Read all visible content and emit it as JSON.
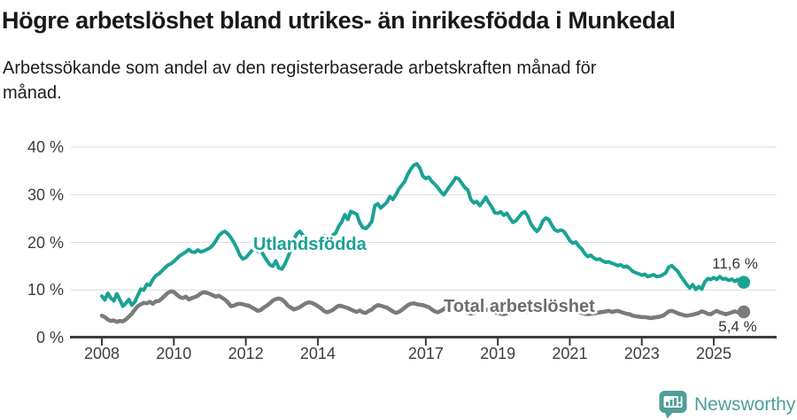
{
  "header": {
    "title": "Högre arbetslöshet bland utrikes- än inrikesfödda i Munkedal",
    "subtitle": "Arbetssökande som andel av den registerbaserade arbetskraften månad för\nmånad."
  },
  "chart_data": {
    "type": "line",
    "unit": "%",
    "frequency": "monthly",
    "start": {
      "year": 2008,
      "month": 1
    },
    "end": {
      "year": 2025,
      "month": 11
    },
    "grid": true,
    "ylim": [
      0,
      40
    ],
    "y_axis": {
      "ticks": [
        {
          "value": 0,
          "label": "0 %"
        },
        {
          "value": 10,
          "label": "10 %"
        },
        {
          "value": 20,
          "label": "20 %"
        },
        {
          "value": 30,
          "label": "30 %"
        },
        {
          "value": 40,
          "label": "40 %"
        }
      ]
    },
    "x_axis": {
      "ticks": [
        {
          "year": 2008,
          "label": "2008"
        },
        {
          "year": 2010,
          "label": "2010"
        },
        {
          "year": 2012,
          "label": "2012"
        },
        {
          "year": 2014,
          "label": "2014"
        },
        {
          "year": 2017,
          "label": "2017"
        },
        {
          "year": 2019,
          "label": "2019"
        },
        {
          "year": 2021,
          "label": "2021"
        },
        {
          "year": 2023,
          "label": "2023"
        },
        {
          "year": 2025,
          "label": "2025"
        }
      ]
    },
    "series": [
      {
        "name": "Utlandsfödda",
        "color": "#1aa294",
        "end_value_label": "11,6 %",
        "end_value": 11.6,
        "values": [
          8.7,
          7.9,
          9.3,
          8.3,
          7.7,
          9.2,
          8.0,
          6.6,
          7.2,
          8.0,
          6.8,
          7.5,
          8.9,
          10.2,
          10.0,
          11.2,
          11.0,
          12.2,
          13.0,
          13.4,
          14.0,
          14.6,
          15.2,
          15.5,
          16.0,
          16.6,
          17.2,
          17.6,
          18.0,
          18.5,
          18.0,
          17.9,
          18.4,
          18.0,
          18.2,
          18.5,
          18.8,
          19.4,
          20.3,
          21.4,
          22.0,
          22.3,
          21.8,
          21.0,
          20.0,
          18.8,
          17.3,
          16.5,
          16.8,
          17.5,
          18.3,
          18.6,
          18.1,
          18.4,
          17.2,
          16.2,
          15.3,
          15.0,
          16.1,
          14.6,
          14.4,
          15.4,
          16.8,
          18.5,
          20.5,
          21.8,
          22.3,
          21.5,
          20.3,
          19.4,
          19.0,
          19.5,
          20.2,
          21.0,
          21.4,
          21.2,
          20.8,
          21.5,
          22.0,
          23.4,
          24.3,
          25.8,
          24.8,
          26.5,
          26.2,
          25.9,
          24.1,
          23.1,
          22.9,
          23.5,
          24.4,
          27.7,
          28.1,
          27.2,
          27.8,
          28.4,
          29.6,
          29.0,
          30.0,
          31.2,
          32.0,
          32.8,
          34.3,
          35.4,
          36.2,
          36.5,
          35.6,
          33.9,
          33.4,
          33.7,
          32.8,
          32.2,
          31.5,
          30.6,
          30.0,
          30.9,
          31.8,
          32.6,
          33.6,
          33.3,
          32.4,
          31.5,
          31.0,
          29.0,
          28.3,
          28.6,
          27.7,
          28.5,
          29.5,
          28.3,
          27.4,
          26.2,
          26.1,
          26.4,
          25.7,
          26.1,
          25.1,
          24.2,
          24.5,
          25.3,
          26.1,
          26.4,
          25.5,
          23.9,
          23.0,
          22.3,
          23.0,
          24.5,
          25.1,
          24.8,
          23.6,
          22.6,
          22.3,
          22.6,
          22.3,
          21.4,
          20.4,
          19.8,
          20.1,
          19.2,
          18.6,
          17.6,
          17.0,
          17.3,
          16.7,
          16.4,
          16.5,
          16.1,
          15.8,
          15.9,
          15.6,
          15.4,
          15.1,
          15.3,
          14.8,
          15.0,
          14.5,
          13.9,
          13.6,
          13.4,
          13.1,
          13.3,
          12.8,
          13.0,
          13.2,
          12.8,
          12.9,
          13.2,
          13.6,
          14.8,
          15.1,
          14.5,
          13.9,
          12.9,
          12.0,
          11.1,
          10.4,
          11.1,
          10.1,
          10.7,
          10.2,
          11.7,
          12.4,
          12.2,
          12.6,
          12.2,
          12.8,
          12.3,
          12.4,
          12.0,
          12.3,
          11.8,
          12.2,
          11.9,
          11.6
        ]
      },
      {
        "name": "Total arbetslöshet",
        "color": "#7b7b7b",
        "label_color": "#6d6d6d",
        "end_value_label": "5,4 %",
        "end_value": 5.4,
        "values": [
          4.6,
          4.3,
          3.8,
          3.5,
          3.6,
          3.3,
          3.5,
          3.4,
          3.8,
          4.4,
          5.0,
          5.9,
          6.6,
          7.0,
          7.3,
          7.2,
          7.5,
          7.1,
          7.6,
          7.7,
          8.2,
          8.8,
          9.4,
          9.7,
          9.6,
          9.0,
          8.5,
          8.3,
          8.6,
          8.0,
          8.3,
          8.5,
          8.8,
          9.3,
          9.5,
          9.4,
          9.2,
          8.9,
          8.6,
          8.8,
          8.4,
          8.0,
          7.4,
          6.6,
          6.7,
          7.0,
          7.1,
          7.0,
          6.8,
          6.7,
          6.3,
          6.0,
          5.6,
          5.8,
          6.3,
          6.7,
          7.2,
          7.8,
          8.1,
          8.2,
          8.0,
          7.5,
          6.7,
          6.3,
          5.9,
          6.1,
          6.4,
          6.8,
          7.2,
          7.4,
          7.3,
          7.0,
          6.6,
          6.2,
          5.6,
          5.3,
          5.5,
          5.8,
          6.3,
          6.7,
          6.6,
          6.4,
          6.2,
          5.9,
          5.6,
          5.4,
          5.7,
          5.3,
          5.2,
          5.6,
          5.9,
          6.5,
          6.8,
          6.7,
          6.5,
          6.3,
          5.9,
          5.5,
          5.2,
          5.4,
          5.8,
          6.3,
          6.8,
          7.1,
          7.2,
          7.0,
          6.9,
          6.8,
          6.6,
          6.4,
          5.9,
          5.5,
          5.3,
          5.6,
          6.0,
          6.5,
          6.7,
          6.6,
          6.4,
          6.1,
          5.8,
          5.5,
          5.2,
          5.0,
          5.2,
          5.5,
          5.8,
          6.0,
          5.9,
          5.7,
          5.5,
          5.3,
          5.2,
          5.0,
          4.9,
          5.1,
          5.3,
          5.6,
          5.8,
          5.9,
          5.7,
          5.5,
          5.4,
          5.6,
          5.8,
          6.0,
          6.4,
          6.8,
          7.0,
          6.9,
          6.7,
          6.4,
          6.2,
          6.0,
          5.9,
          5.8,
          5.7,
          5.6,
          5.5,
          5.4,
          5.2,
          5.0,
          4.9,
          5.0,
          5.1,
          5.2,
          5.3,
          5.4,
          5.5,
          5.6,
          5.4,
          5.5,
          5.6,
          5.4,
          5.2,
          5.0,
          4.9,
          4.6,
          4.5,
          4.4,
          4.3,
          4.3,
          4.2,
          4.1,
          4.2,
          4.3,
          4.4,
          4.6,
          5.0,
          5.5,
          5.6,
          5.4,
          5.1,
          4.9,
          4.7,
          4.6,
          4.7,
          4.8,
          5.0,
          5.2,
          5.5,
          5.3,
          5.0,
          4.9,
          5.3,
          5.6,
          5.3,
          5.1,
          4.9,
          5.1,
          5.3,
          5.5,
          5.3,
          5.2,
          5.4
        ]
      }
    ],
    "colors": {
      "grid": "#dcdcdc",
      "axis": "#3c3c3c",
      "accent_teal": "#1aa294",
      "line_gray": "#7b7b7b"
    }
  },
  "footer": {
    "brand": "Newsworthy",
    "brand_color": "#4f9e9a"
  }
}
